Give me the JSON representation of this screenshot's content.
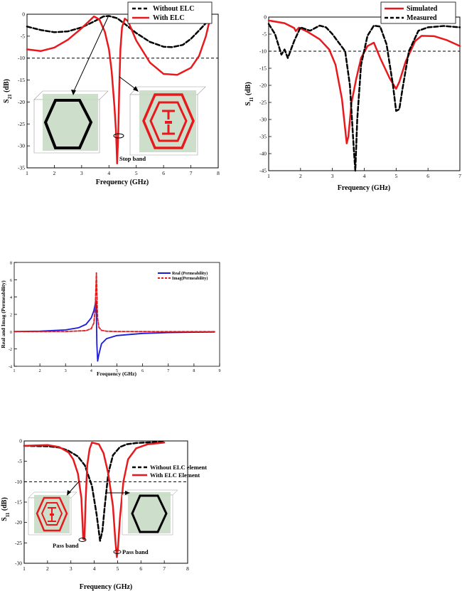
{
  "chart_data": [
    {
      "id": "c1",
      "type": "line",
      "xlabel": "Frequency (GHz)",
      "ylabel": "S21 (dB)",
      "xlim": [
        1,
        8
      ],
      "ylim": [
        -35,
        0
      ],
      "xticks": [
        "1",
        "2",
        "3",
        "4",
        "5",
        "6",
        "7",
        "8"
      ],
      "yticks": [
        "0",
        "-5",
        "-10",
        "-15",
        "-20",
        "-25",
        "-30",
        "-35"
      ],
      "legend_position": "top-right",
      "reference_line": -10,
      "annotations": [
        "Stop band"
      ],
      "series": [
        {
          "name": "Without ELC",
          "color": "#000000",
          "dash": true,
          "x": [
            1,
            1.5,
            2,
            2.5,
            3,
            3.5,
            3.8,
            4,
            4.3,
            4.6,
            5,
            5.5,
            6,
            6.3,
            6.7,
            7,
            7.3,
            7.6
          ],
          "y": [
            -2.8,
            -3.6,
            -4.1,
            -3.9,
            -3,
            -1.5,
            -0.5,
            -0.4,
            -0.9,
            -2.3,
            -4.3,
            -6.3,
            -7.4,
            -7.5,
            -7,
            -5.6,
            -3.7,
            -1.7
          ]
        },
        {
          "name": "With ELC",
          "color": "#e8191c",
          "dash": false,
          "x": [
            1,
            1.5,
            2,
            2.5,
            3,
            3.3,
            3.45,
            3.65,
            3.85,
            4,
            4.1,
            4.2,
            4.26,
            4.3,
            4.34,
            4.38,
            4.42,
            4.48,
            4.58,
            4.7,
            5,
            5.5,
            6,
            6.5,
            7,
            7.3,
            7.55,
            7.7
          ],
          "y": [
            -8,
            -8.4,
            -7.6,
            -5.8,
            -3.2,
            -1.4,
            -0.5,
            -1.2,
            -4,
            -8,
            -13,
            -21,
            -27,
            -34,
            -27,
            -16,
            -8,
            -3,
            -1,
            -1.6,
            -6,
            -11,
            -13.6,
            -13.8,
            -12.2,
            -9.5,
            -5,
            -1
          ]
        }
      ]
    },
    {
      "id": "c2",
      "type": "line",
      "xlabel": "Frequency (GHz)",
      "ylabel": "S11 (dB)",
      "xlim": [
        1,
        7
      ],
      "ylim": [
        -45,
        0
      ],
      "xticks": [
        "1",
        "2",
        "3",
        "4",
        "5",
        "6",
        "7"
      ],
      "yticks": [
        "0",
        "-5",
        "-10",
        "-15",
        "-20",
        "-25",
        "-30",
        "-35",
        "-40",
        "-45"
      ],
      "legend_position": "top-right",
      "reference_line": -10,
      "series": [
        {
          "name": "Simulated",
          "color": "#e8191c",
          "dash": false,
          "x": [
            1,
            1.5,
            1.8,
            1.85,
            1.95,
            2.2,
            2.6,
            2.9,
            3.1,
            3.3,
            3.45,
            3.5,
            3.6,
            3.75,
            3.9,
            4.1,
            4.3,
            4.5,
            4.8,
            5,
            5.1,
            5.3,
            5.6,
            5.8,
            6.2,
            6.6,
            7
          ],
          "y": [
            -1,
            -1.8,
            -3.2,
            -4.1,
            -3.1,
            -4.2,
            -6.5,
            -9.5,
            -14,
            -24,
            -37,
            -35,
            -25,
            -18,
            -12,
            -8.5,
            -7.5,
            -12,
            -18,
            -21,
            -19,
            -13,
            -7,
            -5.5,
            -5.6,
            -6.8,
            -8.5
          ]
        },
        {
          "name": "Measured",
          "color": "#000000",
          "dash": true,
          "x": [
            1,
            1.2,
            1.4,
            1.5,
            1.6,
            1.8,
            2,
            2.3,
            2.6,
            2.8,
            3,
            3.2,
            3.4,
            3.55,
            3.62,
            3.68,
            3.72,
            3.78,
            3.9,
            4.1,
            4.3,
            4.5,
            4.7,
            4.9,
            5,
            5.1,
            5.2,
            5.4,
            5.7,
            6,
            6.5,
            7
          ],
          "y": [
            -2,
            -5,
            -11,
            -9.5,
            -12,
            -7,
            -3,
            -4,
            -2.5,
            -3,
            -5,
            -7.5,
            -10,
            -20,
            -31,
            -40,
            -45,
            -30,
            -14,
            -5.5,
            -2.5,
            -2.8,
            -8,
            -20,
            -27.5,
            -27,
            -21,
            -10,
            -4,
            -3,
            -2.6,
            -3
          ]
        }
      ]
    },
    {
      "id": "c3",
      "type": "line",
      "xlabel": "Frequency (GHz)",
      "ylabel": "Real and Imag (Permeability)",
      "xlim": [
        1,
        9
      ],
      "ylim": [
        -4,
        8
      ],
      "xticks": [
        "1",
        "2",
        "3",
        "4",
        "5",
        "6",
        "7",
        "8",
        "9"
      ],
      "yticks": [
        "8",
        "6",
        "4",
        "2",
        "0",
        "-2",
        "-4"
      ],
      "legend_position": "top-right",
      "series": [
        {
          "name": "Real (Permeability)",
          "color": "#1a1adb",
          "dash": false,
          "x": [
            1,
            2,
            3,
            3.5,
            3.8,
            4,
            4.1,
            4.15,
            4.18,
            4.2,
            4.22,
            4.25,
            4.3,
            4.4,
            4.6,
            5,
            6,
            7,
            8,
            8.8
          ],
          "y": [
            0.02,
            0.06,
            0.2,
            0.45,
            0.85,
            1.6,
            2.4,
            3.1,
            3.6,
            2,
            -1.5,
            -3.4,
            -2.6,
            -1.4,
            -0.8,
            -0.45,
            -0.2,
            -0.1,
            -0.06,
            -0.04
          ]
        },
        {
          "name": "Imag(Permeability)",
          "color": "#e8191c",
          "dash": true,
          "x": [
            1,
            3,
            3.8,
            4,
            4.1,
            4.15,
            4.18,
            4.2,
            4.22,
            4.25,
            4.3,
            4.4,
            4.6,
            5,
            6,
            8,
            8.8
          ],
          "y": [
            0,
            0.02,
            0.12,
            0.35,
            1,
            2.5,
            5,
            6.8,
            4.5,
            1.5,
            0.5,
            0.15,
            0.05,
            0.02,
            0.01,
            0,
            0
          ]
        }
      ]
    },
    {
      "id": "c4",
      "type": "line",
      "xlabel": "Frequency (GHz)",
      "ylabel": "S11 (dB)",
      "xlim": [
        1,
        8
      ],
      "ylim": [
        -30,
        0
      ],
      "xticks": [
        "1",
        "2",
        "3",
        "4",
        "5",
        "6",
        "7",
        "8"
      ],
      "yticks": [
        "0",
        "-5",
        "-10",
        "-15",
        "-20",
        "-25",
        "-30"
      ],
      "legend_position": "top-right",
      "reference_line": -10,
      "annotations": [
        "Pass band",
        "Pass band"
      ],
      "series": [
        {
          "name": "Without ELC element",
          "color": "#000000",
          "dash": true,
          "x": [
            1,
            2,
            2.5,
            2.9,
            3.3,
            3.6,
            3.9,
            4.1,
            4.25,
            4.35,
            4.45,
            4.6,
            4.8,
            5.1,
            5.4,
            5.8,
            6.2,
            6.6,
            7
          ],
          "y": [
            -1.2,
            -1.3,
            -1.6,
            -2.4,
            -3.8,
            -6,
            -11,
            -18,
            -24.5,
            -22,
            -16,
            -8,
            -3.5,
            -1.5,
            -0.8,
            -0.5,
            -0.4,
            -0.3,
            -0.3
          ]
        },
        {
          "name": "With ELC Element",
          "color": "#e8191c",
          "dash": false,
          "x": [
            1,
            2,
            2.5,
            2.9,
            3.1,
            3.3,
            3.45,
            3.53,
            3.58,
            3.63,
            3.7,
            3.8,
            3.9,
            4.2,
            4.4,
            4.6,
            4.8,
            4.9,
            4.97,
            5.02,
            5.1,
            5.25,
            5.45,
            5.8,
            6.3,
            7
          ],
          "y": [
            -1.2,
            -1,
            -1.5,
            -2.8,
            -4.5,
            -8,
            -14,
            -24,
            -24.2,
            -15,
            -6,
            -2,
            -0.4,
            -0.8,
            -3,
            -8,
            -16,
            -24,
            -28.5,
            -26,
            -19,
            -10,
            -4.5,
            -1.8,
            -0.8,
            -0.4
          ]
        }
      ]
    }
  ]
}
